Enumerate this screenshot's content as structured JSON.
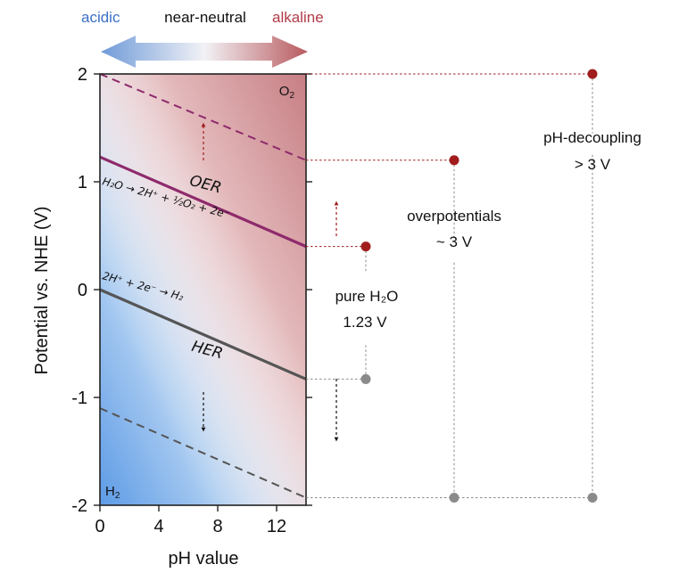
{
  "chart_data": {
    "type": "line",
    "title": "",
    "xlabel": "pH value",
    "ylabel": "Potential vs. NHE (V)",
    "xlim": [
      0,
      14
    ],
    "ylim": [
      -2,
      2
    ],
    "xticks": [
      0,
      4,
      8,
      12
    ],
    "yticks": [
      -2,
      -1,
      0,
      1,
      2
    ],
    "grid": false,
    "series": [
      {
        "name": "OER",
        "x": [
          0,
          14
        ],
        "y": [
          1.23,
          0.4
        ],
        "style": "solid",
        "color": "#8e2a6c"
      },
      {
        "name": "HER",
        "x": [
          0,
          14
        ],
        "y": [
          0.0,
          -0.83
        ],
        "style": "solid",
        "color": "#555555"
      },
      {
        "name": "OER overpotential",
        "x": [
          0,
          14
        ],
        "y": [
          2.0,
          1.2
        ],
        "style": "dashed",
        "color": "#8e2a6c"
      },
      {
        "name": "HER overpotential",
        "x": [
          0,
          14
        ],
        "y": [
          -1.1,
          -1.93
        ],
        "style": "dashed",
        "color": "#555555"
      }
    ],
    "header_arrow": {
      "left": "acidic",
      "middle": "near-neutral",
      "right": "alkaline"
    },
    "region_labels": {
      "top_right": "O",
      "top_right_sub": "2",
      "bottom_left": "H",
      "bottom_left_sub": "2"
    },
    "line_labels": {
      "oer": "OER",
      "her": "HER",
      "oer_equation": "H₂O → 2H⁺ + ½O₂ + 2e⁻",
      "her_equation": "2H⁺ + 2e⁻ → H₂"
    },
    "annotations": {
      "pure_water": {
        "line1": "pure H₂O",
        "line2": "1.23 V",
        "top_v": 0.4,
        "bottom_v": -0.83
      },
      "overpotentials": {
        "line1": "overpotentials",
        "line2": "~ 3 V",
        "top_v": 1.2,
        "bottom_v": -1.93
      },
      "ph_decoupling": {
        "line1": "pH-decoupling",
        "line2": "> 3 V",
        "top_v": 2.0,
        "bottom_v": -1.93
      }
    },
    "colors": {
      "acidic": "#3b6fc4",
      "alkaline": "#b23a48",
      "dot_red": "#a11d1d",
      "dot_gray": "#8a8a8a",
      "oer_line": "#8e2a6c",
      "her_line": "#555555"
    }
  }
}
